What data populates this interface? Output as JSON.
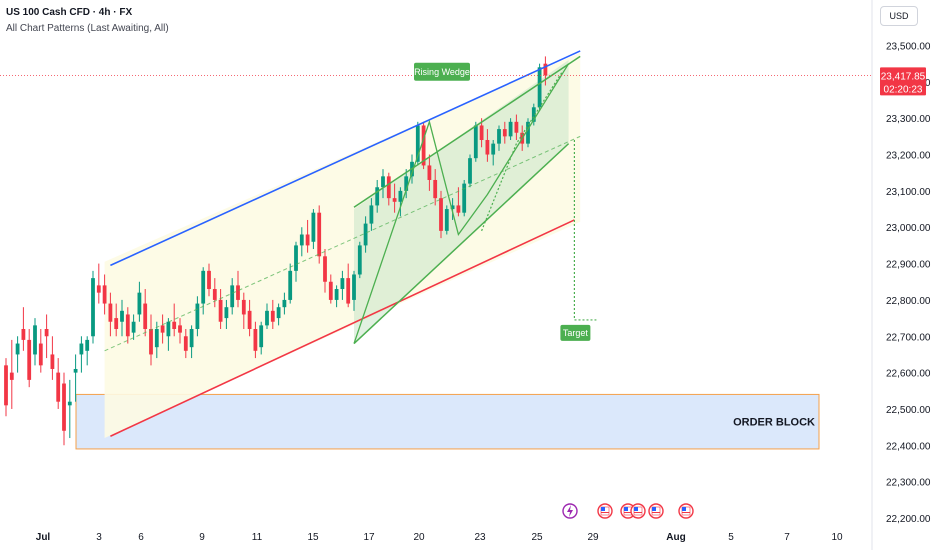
{
  "header": {
    "symbol": "US 100 Cash CFD · 4h · FX",
    "indicator": "All Chart Patterns (Last Awaiting, All)",
    "currency": "USD"
  },
  "price_tag": {
    "price": "23,417.85",
    "countdown": "02:20:23"
  },
  "colors": {
    "up": "#089981",
    "down": "#f23645",
    "upper_channel": "#2962ff",
    "lower_channel": "#f23645",
    "wedge": "#4caf50",
    "order_block_fill": "#dbe8fb",
    "order_block_border": "#f5a04a",
    "channel_fill": "#fdfbe3"
  },
  "icons": [
    "lightning-event-icon",
    "us-flag-icon",
    "us-flag-icon",
    "us-flag-icon",
    "us-flag-icon",
    "us-flag-icon"
  ],
  "chart_data": {
    "type": "candlestick",
    "title": "US 100 Cash CFD · 4h · FX",
    "ylim": [
      22200,
      23580
    ],
    "y_ticks": [
      "23,500.00",
      "23,400.00",
      "23,300.00",
      "23,200.00",
      "23,100.00",
      "23,000.00",
      "22,900.00",
      "22,800.00",
      "22,700.00",
      "22,600.00",
      "22,500.00",
      "22,400.00",
      "22,300.00",
      "22,200.00"
    ],
    "x_ticks": [
      "Jul",
      "3",
      "6",
      "9",
      "11",
      "15",
      "17",
      "20",
      "23",
      "25",
      "29",
      "Aug",
      "5",
      "7",
      "10"
    ],
    "last_price": 23417.85,
    "annotations": {
      "pattern": "Rising Wedge",
      "target": "Target",
      "zone": "ORDER BLOCK"
    },
    "order_block": [
      22390,
      22540
    ],
    "ohlc": [
      [
        22620,
        22640,
        22480,
        22510
      ],
      [
        22600,
        22690,
        22500,
        22580
      ],
      [
        22650,
        22700,
        22600,
        22680
      ],
      [
        22720,
        22780,
        22660,
        22690
      ],
      [
        22690,
        22720,
        22560,
        22580
      ],
      [
        22650,
        22750,
        22620,
        22730
      ],
      [
        22680,
        22720,
        22600,
        22620
      ],
      [
        22720,
        22760,
        22640,
        22700
      ],
      [
        22650,
        22700,
        22580,
        22610
      ],
      [
        22600,
        22640,
        22500,
        22520
      ],
      [
        22570,
        22600,
        22400,
        22440
      ],
      [
        22510,
        22580,
        22420,
        22520
      ],
      [
        22600,
        22650,
        22520,
        22610
      ],
      [
        22650,
        22700,
        22600,
        22680
      ],
      [
        22660,
        22700,
        22620,
        22690
      ],
      [
        22700,
        22880,
        22680,
        22860
      ],
      [
        22840,
        22900,
        22790,
        22820
      ],
      [
        22840,
        22870,
        22760,
        22790
      ],
      [
        22790,
        22820,
        22700,
        22740
      ],
      [
        22750,
        22790,
        22700,
        22720
      ],
      [
        22740,
        22800,
        22700,
        22770
      ],
      [
        22760,
        22780,
        22680,
        22700
      ],
      [
        22710,
        22760,
        22690,
        22740
      ],
      [
        22760,
        22850,
        22740,
        22820
      ],
      [
        22790,
        22830,
        22700,
        22720
      ],
      [
        22720,
        22760,
        22620,
        22650
      ],
      [
        22670,
        22740,
        22640,
        22720
      ],
      [
        22730,
        22760,
        22680,
        22710
      ],
      [
        22700,
        22750,
        22660,
        22740
      ],
      [
        22740,
        22790,
        22700,
        22720
      ],
      [
        22730,
        22750,
        22680,
        22710
      ],
      [
        22700,
        22720,
        22640,
        22660
      ],
      [
        22670,
        22730,
        22640,
        22720
      ],
      [
        22720,
        22810,
        22700,
        22790
      ],
      [
        22790,
        22890,
        22760,
        22880
      ],
      [
        22880,
        22900,
        22810,
        22830
      ],
      [
        22830,
        22860,
        22780,
        22800
      ],
      [
        22800,
        22830,
        22720,
        22740
      ],
      [
        22750,
        22800,
        22720,
        22780
      ],
      [
        22780,
        22860,
        22760,
        22840
      ],
      [
        22840,
        22880,
        22780,
        22800
      ],
      [
        22800,
        22820,
        22720,
        22760
      ],
      [
        22770,
        22800,
        22700,
        22720
      ],
      [
        22720,
        22740,
        22640,
        22660
      ],
      [
        22670,
        22740,
        22650,
        22730
      ],
      [
        22730,
        22790,
        22720,
        22770
      ],
      [
        22770,
        22800,
        22720,
        22740
      ],
      [
        22750,
        22790,
        22730,
        22780
      ],
      [
        22780,
        22820,
        22760,
        22800
      ],
      [
        22800,
        22900,
        22790,
        22880
      ],
      [
        22880,
        22960,
        22850,
        22950
      ],
      [
        22950,
        23000,
        22920,
        22980
      ],
      [
        22980,
        23020,
        22930,
        22950
      ],
      [
        22960,
        23050,
        22940,
        23040
      ],
      [
        23040,
        23060,
        22900,
        22920
      ],
      [
        22920,
        22940,
        22820,
        22850
      ],
      [
        22850,
        22870,
        22790,
        22800
      ],
      [
        22800,
        22840,
        22780,
        22830
      ],
      [
        22830,
        22880,
        22800,
        22860
      ],
      [
        22860,
        22900,
        22780,
        22790
      ],
      [
        22800,
        22880,
        22770,
        22870
      ],
      [
        22870,
        22960,
        22860,
        22950
      ],
      [
        22950,
        23030,
        22930,
        23010
      ],
      [
        23010,
        23080,
        22990,
        23060
      ],
      [
        23060,
        23130,
        23040,
        23110
      ],
      [
        23110,
        23160,
        23080,
        23140
      ],
      [
        23140,
        23150,
        23060,
        23080
      ],
      [
        23080,
        23120,
        23040,
        23070
      ],
      [
        23070,
        23110,
        23030,
        23100
      ],
      [
        23100,
        23160,
        23080,
        23140
      ],
      [
        23140,
        23200,
        23120,
        23180
      ],
      [
        23180,
        23290,
        23170,
        23280
      ],
      [
        23280,
        23290,
        23160,
        23170
      ],
      [
        23170,
        23200,
        23100,
        23130
      ],
      [
        23130,
        23160,
        23060,
        23080
      ],
      [
        23080,
        23100,
        22970,
        22990
      ],
      [
        22990,
        23060,
        22980,
        23050
      ],
      [
        23050,
        23080,
        23020,
        23060
      ],
      [
        23060,
        23110,
        23030,
        23040
      ],
      [
        23040,
        23130,
        23030,
        23120
      ],
      [
        23120,
        23200,
        23110,
        23190
      ],
      [
        23190,
        23290,
        23180,
        23280
      ],
      [
        23280,
        23300,
        23220,
        23240
      ],
      [
        23240,
        23270,
        23180,
        23200
      ],
      [
        23200,
        23240,
        23170,
        23230
      ],
      [
        23230,
        23280,
        23210,
        23270
      ],
      [
        23270,
        23290,
        23230,
        23250
      ],
      [
        23250,
        23300,
        23240,
        23290
      ],
      [
        23290,
        23310,
        23240,
        23260
      ],
      [
        23260,
        23280,
        23210,
        23230
      ],
      [
        23230,
        23300,
        23220,
        23290
      ],
      [
        23290,
        23340,
        23280,
        23330
      ],
      [
        23330,
        23450,
        23320,
        23440
      ],
      [
        23450,
        23470,
        23390,
        23417.85
      ]
    ]
  }
}
